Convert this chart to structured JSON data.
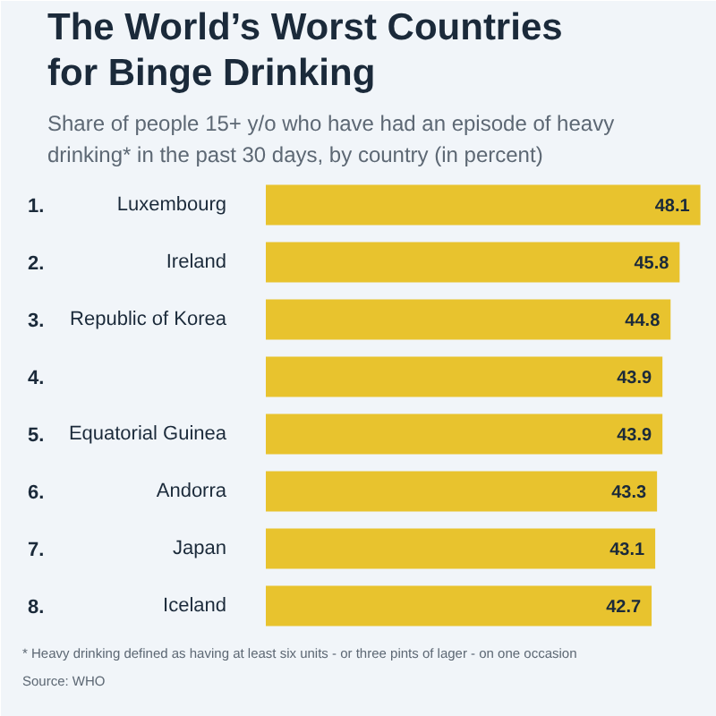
{
  "chart_data": {
    "type": "bar",
    "orientation": "horizontal",
    "title": "The World’s Worst Countries for Binge Drinking",
    "subtitle": "Share of people 15+ y/o who have had an episode of heavy drinking* in the past 30 days, by country (in percent)",
    "categories": [
      "Luxembourg",
      "Ireland",
      "Republic of Korea",
      null,
      "Equatorial Guinea",
      "Andorra",
      "Japan",
      "Iceland"
    ],
    "values": [
      48.1,
      45.8,
      44.8,
      43.9,
      43.9,
      43.3,
      43.1,
      42.7
    ],
    "color": "#e8c32e",
    "data_labels": true,
    "annotations": [
      "1.",
      "2.",
      "3.",
      "4.",
      "5.",
      "6.",
      "7.",
      "8.",
      "* Heavy drinking defined as having at least six units - or three pints of lager - on one occasion",
      "Source: WHO"
    ]
  }
}
